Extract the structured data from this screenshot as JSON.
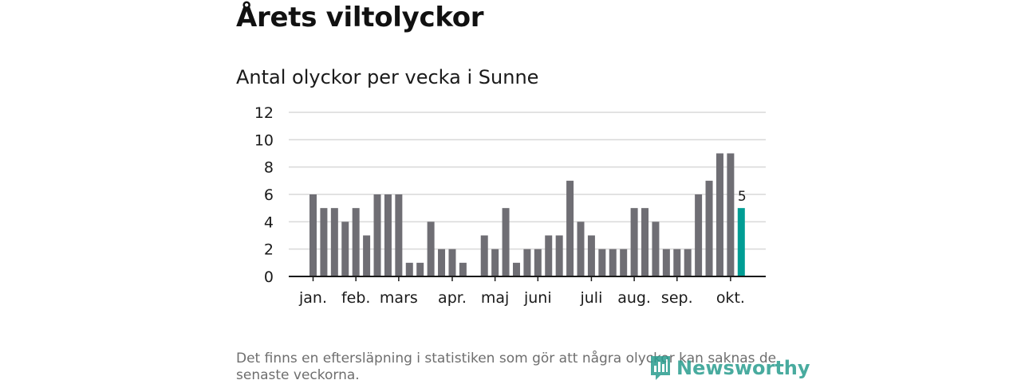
{
  "title": "Årets viltolyckor",
  "subtitle": "Antal olyckor per vecka i Sunne",
  "footnote": "Det finns en eftersläpning i statistiken som gör att några olyckor kan saknas de senaste veckorna.",
  "brand": {
    "name": "Newsworthy",
    "icon": "newsworthy-logo-icon"
  },
  "colors": {
    "bar": "#6f6e74",
    "highlight": "#009d94",
    "grid": "#d9d9d9",
    "axis": "#1a1a1a",
    "brand": "#2a9d8f"
  },
  "chart_data": {
    "type": "bar",
    "title": "Antal olyckor per vecka i Sunne",
    "xlabel": "",
    "ylabel": "",
    "ylim": [
      0,
      12
    ],
    "yticks": [
      0,
      2,
      4,
      6,
      8,
      10,
      12
    ],
    "grid": true,
    "weeks": [
      1,
      2,
      3,
      4,
      5,
      6,
      7,
      8,
      9,
      10,
      11,
      12,
      13,
      14,
      15,
      16,
      17,
      18,
      19,
      20,
      21,
      22,
      23,
      24,
      25,
      26,
      27,
      28,
      29,
      30,
      31,
      32,
      33,
      34,
      35,
      36,
      37,
      38,
      39,
      40,
      41
    ],
    "values": [
      6,
      5,
      5,
      4,
      5,
      3,
      6,
      6,
      6,
      1,
      1,
      4,
      2,
      2,
      1,
      0,
      3,
      2,
      5,
      1,
      2,
      2,
      3,
      3,
      7,
      4,
      3,
      2,
      2,
      2,
      5,
      5,
      4,
      2,
      2,
      2,
      6,
      7,
      9,
      9,
      5
    ],
    "highlight_index": 40,
    "highlight_label": "5",
    "month_labels": [
      {
        "label": "jan.",
        "week": 1
      },
      {
        "label": "feb.",
        "week": 5
      },
      {
        "label": "mars",
        "week": 9
      },
      {
        "label": "apr.",
        "week": 14
      },
      {
        "label": "maj",
        "week": 18
      },
      {
        "label": "juni",
        "week": 22
      },
      {
        "label": "juli",
        "week": 27
      },
      {
        "label": "aug.",
        "week": 31
      },
      {
        "label": "sep.",
        "week": 35
      },
      {
        "label": "okt.",
        "week": 40
      }
    ]
  }
}
